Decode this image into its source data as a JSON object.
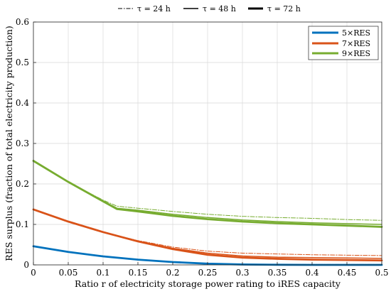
{
  "chart_data": {
    "type": "line",
    "xlabel": "Ratio r of electricity storage power rating to iRES capacity",
    "ylabel": "RES surplus (fraction of total electricity production)",
    "xlim": [
      0,
      0.5
    ],
    "ylim": [
      0,
      0.6
    ],
    "x_ticks": [
      0,
      0.05,
      0.1,
      0.15,
      0.2,
      0.25,
      0.3,
      0.35,
      0.4,
      0.45,
      0.5
    ],
    "x_tick_labels": [
      "0",
      "0.05",
      "0.1",
      "0.15",
      "0.2",
      "0.25",
      "0.3",
      "0.35",
      "0.4",
      "0.45",
      "0.5"
    ],
    "y_ticks": [
      0,
      0.1,
      0.2,
      0.3,
      0.4,
      0.5,
      0.6
    ],
    "y_tick_labels": [
      "0",
      "0.1",
      "0.2",
      "0.3",
      "0.4",
      "0.5",
      "0.6"
    ],
    "grid": true,
    "legend_top": {
      "placement": "top-outside",
      "entries": [
        {
          "label": "τ = 24 h",
          "line_style": "dash-dot",
          "line_weight": "thin"
        },
        {
          "label": "τ = 48 h",
          "line_style": "solid",
          "line_weight": "medium"
        },
        {
          "label": "τ = 72 h",
          "line_style": "solid",
          "line_weight": "thick"
        }
      ]
    },
    "legend_box": {
      "placement": "top-right",
      "entries": [
        {
          "label": "5×RES",
          "color": "#0072BD"
        },
        {
          "label": "7×RES",
          "color": "#D95319"
        },
        {
          "label": "9×RES",
          "color": "#77AC30"
        }
      ]
    },
    "series": [
      {
        "name": "5×RES",
        "tau": "24 h",
        "color": "#0072BD",
        "style": "dash-dot",
        "x": [
          0,
          0.05,
          0.1,
          0.15,
          0.2,
          0.25,
          0.3,
          0.35,
          0.4,
          0.45,
          0.5
        ],
        "y": [
          0.046,
          0.032,
          0.021,
          0.013,
          0.007,
          0.003,
          0.002,
          0.001,
          0.001,
          0.001,
          0.001
        ]
      },
      {
        "name": "5×RES",
        "tau": "48 h",
        "color": "#0072BD",
        "style": "solid",
        "x": [
          0,
          0.05,
          0.1,
          0.15,
          0.2,
          0.25,
          0.3,
          0.35,
          0.4,
          0.45,
          0.5
        ],
        "y": [
          0.046,
          0.032,
          0.021,
          0.013,
          0.007,
          0.003,
          0.001,
          0.0005,
          0.0,
          0.0,
          0.0
        ]
      },
      {
        "name": "5×RES",
        "tau": "72 h",
        "color": "#0072BD",
        "style": "solid-thick",
        "x": [
          0,
          0.05,
          0.1,
          0.15,
          0.2,
          0.25,
          0.3,
          0.35,
          0.4,
          0.45,
          0.5
        ],
        "y": [
          0.046,
          0.032,
          0.021,
          0.013,
          0.007,
          0.003,
          0.001,
          0.0003,
          0.0,
          0.0,
          0.0
        ]
      },
      {
        "name": "7×RES",
        "tau": "24 h",
        "color": "#D95319",
        "style": "dash-dot",
        "x": [
          0,
          0.05,
          0.1,
          0.15,
          0.2,
          0.25,
          0.3,
          0.35,
          0.4,
          0.45,
          0.5
        ],
        "y": [
          0.137,
          0.107,
          0.081,
          0.06,
          0.044,
          0.034,
          0.029,
          0.027,
          0.025,
          0.024,
          0.023
        ]
      },
      {
        "name": "7×RES",
        "tau": "48 h",
        "color": "#D95319",
        "style": "solid",
        "x": [
          0,
          0.05,
          0.1,
          0.15,
          0.2,
          0.25,
          0.3,
          0.35,
          0.4,
          0.45,
          0.5
        ],
        "y": [
          0.137,
          0.107,
          0.081,
          0.059,
          0.041,
          0.029,
          0.022,
          0.019,
          0.018,
          0.017,
          0.016
        ]
      },
      {
        "name": "7×RES",
        "tau": "72 h",
        "color": "#D95319",
        "style": "solid-thick",
        "x": [
          0,
          0.05,
          0.1,
          0.15,
          0.2,
          0.25,
          0.3,
          0.35,
          0.4,
          0.45,
          0.5
        ],
        "y": [
          0.137,
          0.107,
          0.081,
          0.058,
          0.039,
          0.025,
          0.018,
          0.015,
          0.013,
          0.012,
          0.011
        ]
      },
      {
        "name": "9×RES",
        "tau": "24 h",
        "color": "#77AC30",
        "style": "dash-dot",
        "x": [
          0,
          0.05,
          0.1,
          0.12,
          0.15,
          0.2,
          0.25,
          0.3,
          0.35,
          0.4,
          0.45,
          0.5
        ],
        "y": [
          0.257,
          0.205,
          0.16,
          0.145,
          0.14,
          0.132,
          0.125,
          0.12,
          0.117,
          0.115,
          0.112,
          0.11
        ]
      },
      {
        "name": "9×RES",
        "tau": "48 h",
        "color": "#77AC30",
        "style": "solid",
        "x": [
          0,
          0.05,
          0.1,
          0.12,
          0.15,
          0.2,
          0.25,
          0.3,
          0.35,
          0.4,
          0.45,
          0.5
        ],
        "y": [
          0.257,
          0.205,
          0.158,
          0.14,
          0.135,
          0.125,
          0.117,
          0.111,
          0.107,
          0.104,
          0.102,
          0.1
        ]
      },
      {
        "name": "9×RES",
        "tau": "72 h",
        "color": "#77AC30",
        "style": "solid-thick",
        "x": [
          0,
          0.05,
          0.1,
          0.12,
          0.15,
          0.2,
          0.25,
          0.3,
          0.35,
          0.4,
          0.45,
          0.5
        ],
        "y": [
          0.257,
          0.205,
          0.157,
          0.138,
          0.132,
          0.121,
          0.113,
          0.107,
          0.103,
          0.1,
          0.097,
          0.094
        ]
      }
    ]
  }
}
